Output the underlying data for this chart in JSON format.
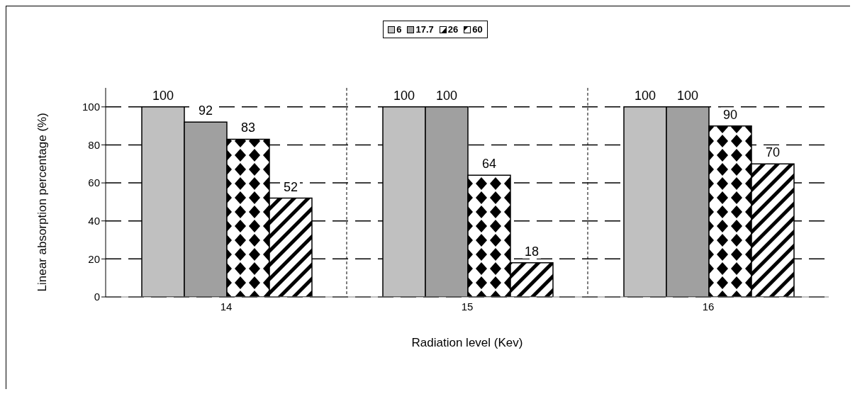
{
  "chart_data": {
    "type": "bar",
    "xlabel": "Radiation level (Kev)",
    "ylabel": "Linear absorption percentage (%)",
    "categories": [
      "14",
      "15",
      "16"
    ],
    "series": [
      {
        "name": "6",
        "color": "#c0c0c0",
        "values": [
          100,
          100,
          100
        ]
      },
      {
        "name": "17.7",
        "color": "#a0a0a0",
        "values": [
          92,
          100,
          100
        ]
      },
      {
        "name": "26",
        "color": "#000000",
        "values": [
          83,
          64,
          90
        ]
      },
      {
        "name": "60",
        "color": "#000000",
        "values": [
          52,
          18,
          70
        ]
      }
    ],
    "ylim": [
      0,
      110
    ],
    "yticks": [
      0,
      20,
      40,
      60,
      80,
      100
    ],
    "grid": true,
    "legend": "top",
    "data_labels": true
  }
}
